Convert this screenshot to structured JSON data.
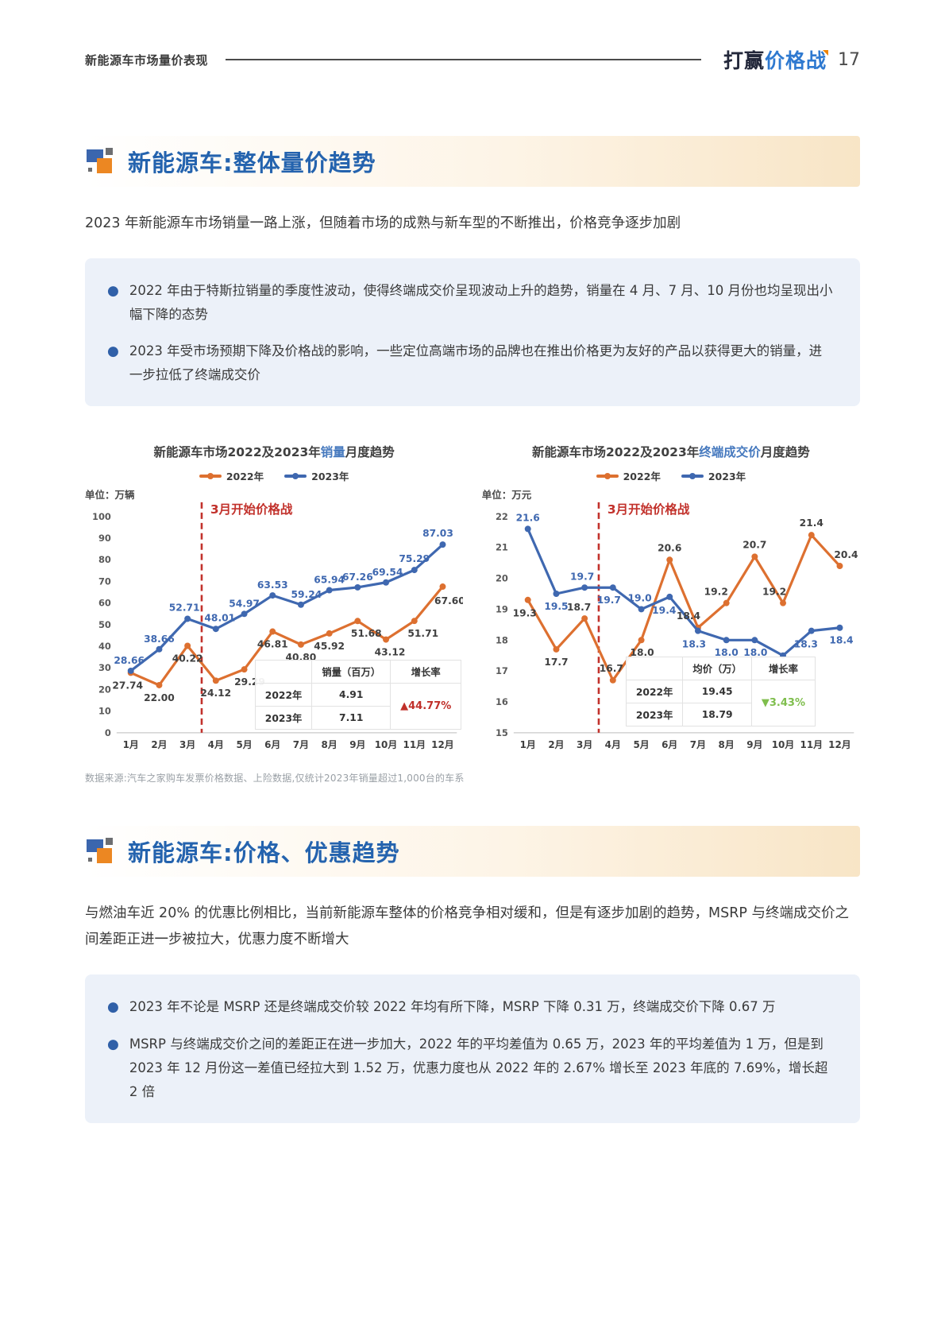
{
  "header": {
    "section_label": "新能源车市场量价表现",
    "logo_dark": "打赢",
    "logo_blue": "价格战",
    "page_number": "17"
  },
  "section1": {
    "title": "新能源车:整体量价趋势",
    "intro": "2023 年新能源车市场销量一路上涨，但随着市场的成熟与新车型的不断推出，价格竞争逐步加剧",
    "bullets": [
      "2022 年由于特斯拉销量的季度性波动，使得终端成交价呈现波动上升的趋势，销量在 4 月、7 月、10 月份也均呈现出小幅下降的态势",
      "2023 年受市场预期下降及价格战的影响，一些定位高端市场的品牌也在推出价格更为友好的产品以获得更大的销量，进一步拉低了终端成交价"
    ],
    "source_note": "数据来源:汽车之家购车发票价格数据、上险数据,仅统计2023年销量超过1,000台的车系"
  },
  "section2": {
    "title": "新能源车:价格、优惠趋势",
    "intro": "与燃油车近 20% 的优惠比例相比，当前新能源车整体的价格竞争相对缓和，但是有逐步加剧的趋势，MSRP 与终端成交价之间差距正进一步被拉大，优惠力度不断增大",
    "bullets": [
      "2023 年不论是 MSRP 还是终端成交价较 2022 年均有所下降，MSRP 下降 0.31 万，终端成交价下降 0.67 万",
      "MSRP 与终端成交价之间的差距正在进一步加大，2022 年的平均差值为 0.65 万，2023 年的平均差值为 1 万，但是到 2023 年 12 月份这一差值已经拉大到 1.52 万，优惠力度也从 2022 年的 2.67% 增长至 2023 年底的 7.69%，增长超 2 倍"
    ]
  },
  "chart_data": [
    {
      "type": "line",
      "title_prefix": "新能源车市场2022及2023年",
      "title_highlight": "销量",
      "title_suffix": "月度趋势",
      "unit": "单位：万辆",
      "annotation": "3月开始价格战",
      "categories": [
        "1月",
        "2月",
        "3月",
        "4月",
        "5月",
        "6月",
        "7月",
        "8月",
        "9月",
        "10月",
        "11月",
        "12月"
      ],
      "ylim": [
        0,
        100
      ],
      "yticks": [
        0,
        10,
        20,
        30,
        40,
        50,
        60,
        70,
        80,
        90,
        100
      ],
      "decimals": 2,
      "grid": false,
      "legend_position": "top",
      "series": [
        {
          "name": "2022年",
          "color": "#dd7030",
          "label_color": "#404040",
          "values": [
            27.74,
            22.0,
            40.22,
            24.12,
            29.29,
            46.81,
            40.8,
            45.92,
            51.68,
            43.12,
            51.71,
            67.6
          ],
          "label_offsets": [
            [
              -4,
              20
            ],
            [
              0,
              20
            ],
            [
              0,
              20
            ],
            [
              0,
              20
            ],
            [
              7,
              20
            ],
            [
              0,
              20
            ],
            [
              0,
              20
            ],
            [
              0,
              20
            ],
            [
              11,
              20
            ],
            [
              5,
              20
            ],
            [
              11,
              20
            ],
            [
              9,
              22
            ]
          ]
        },
        {
          "name": "2023年",
          "color": "#3f68b0",
          "label_color": "#3f68b0",
          "values": [
            28.66,
            38.66,
            52.71,
            48.01,
            54.97,
            63.53,
            59.24,
            65.94,
            67.26,
            69.54,
            75.29,
            87.03
          ],
          "label_offsets": [
            [
              -2,
              -9
            ],
            [
              0,
              -9
            ],
            [
              -4,
              -10
            ],
            [
              5,
              -10
            ],
            [
              0,
              -9
            ],
            [
              0,
              -9
            ],
            [
              7,
              -9
            ],
            [
              0,
              -9
            ],
            [
              0,
              -9
            ],
            [
              2,
              -9
            ],
            [
              0,
              -10
            ],
            [
              -6,
              -10
            ]
          ]
        }
      ],
      "inset": {
        "value_header": "销量（百万）",
        "growth_header": "增长率",
        "rows": [
          {
            "label": "2022年",
            "value": "4.91"
          },
          {
            "label": "2023年",
            "value": "7.11"
          }
        ],
        "growth": "▲44.77%",
        "growth_color": "#c0302a",
        "growth_direction": "up"
      }
    },
    {
      "type": "line",
      "title_prefix": "新能源车市场2022及2023年",
      "title_highlight": "终端成交价",
      "title_suffix": "月度趋势",
      "unit": "单位：万元",
      "annotation": "3月开始价格战",
      "categories": [
        "1月",
        "2月",
        "3月",
        "4月",
        "5月",
        "6月",
        "7月",
        "8月",
        "9月",
        "10月",
        "11月",
        "12月"
      ],
      "ylim": [
        15,
        22
      ],
      "yticks": [
        15,
        16,
        17,
        18,
        19,
        20,
        21,
        22
      ],
      "decimals": 1,
      "grid": false,
      "legend_position": "top",
      "series": [
        {
          "name": "2022年",
          "color": "#dd7030",
          "label_color": "#404040",
          "values": [
            19.3,
            17.7,
            18.7,
            16.7,
            18.0,
            20.6,
            18.4,
            19.2,
            20.7,
            19.2,
            21.4,
            20.4
          ],
          "label_offsets": [
            [
              -4,
              21
            ],
            [
              0,
              20
            ],
            [
              -7,
              -10
            ],
            [
              -2,
              -11
            ],
            [
              1,
              20
            ],
            [
              0,
              -11
            ],
            [
              -12,
              -11
            ],
            [
              -13,
              -10
            ],
            [
              0,
              -11
            ],
            [
              -11,
              -10
            ],
            [
              0,
              -11
            ],
            [
              8,
              -10
            ]
          ]
        },
        {
          "name": "2023年",
          "color": "#3f68b0",
          "label_color": "#3f68b0",
          "values": [
            21.6,
            19.5,
            19.7,
            19.7,
            19.0,
            19.4,
            18.3,
            18.0,
            18.0,
            17.5,
            18.3,
            18.4
          ],
          "label_offsets": [
            [
              0,
              -10
            ],
            [
              0,
              20
            ],
            [
              -3,
              -10
            ],
            [
              -5,
              20
            ],
            [
              -2,
              -10
            ],
            [
              -7,
              21
            ],
            [
              -5,
              21
            ],
            [
              0,
              20
            ],
            [
              1,
              20
            ],
            [
              5,
              21
            ],
            [
              -7,
              21
            ],
            [
              2,
              20
            ]
          ]
        }
      ],
      "inset": {
        "value_header": "均价（万）",
        "growth_header": "增长率",
        "rows": [
          {
            "label": "2022年",
            "value": "19.45"
          },
          {
            "label": "2023年",
            "value": "18.79"
          }
        ],
        "growth": "▼3.43%",
        "growth_color": "#7fbe4d",
        "growth_direction": "down"
      }
    }
  ]
}
